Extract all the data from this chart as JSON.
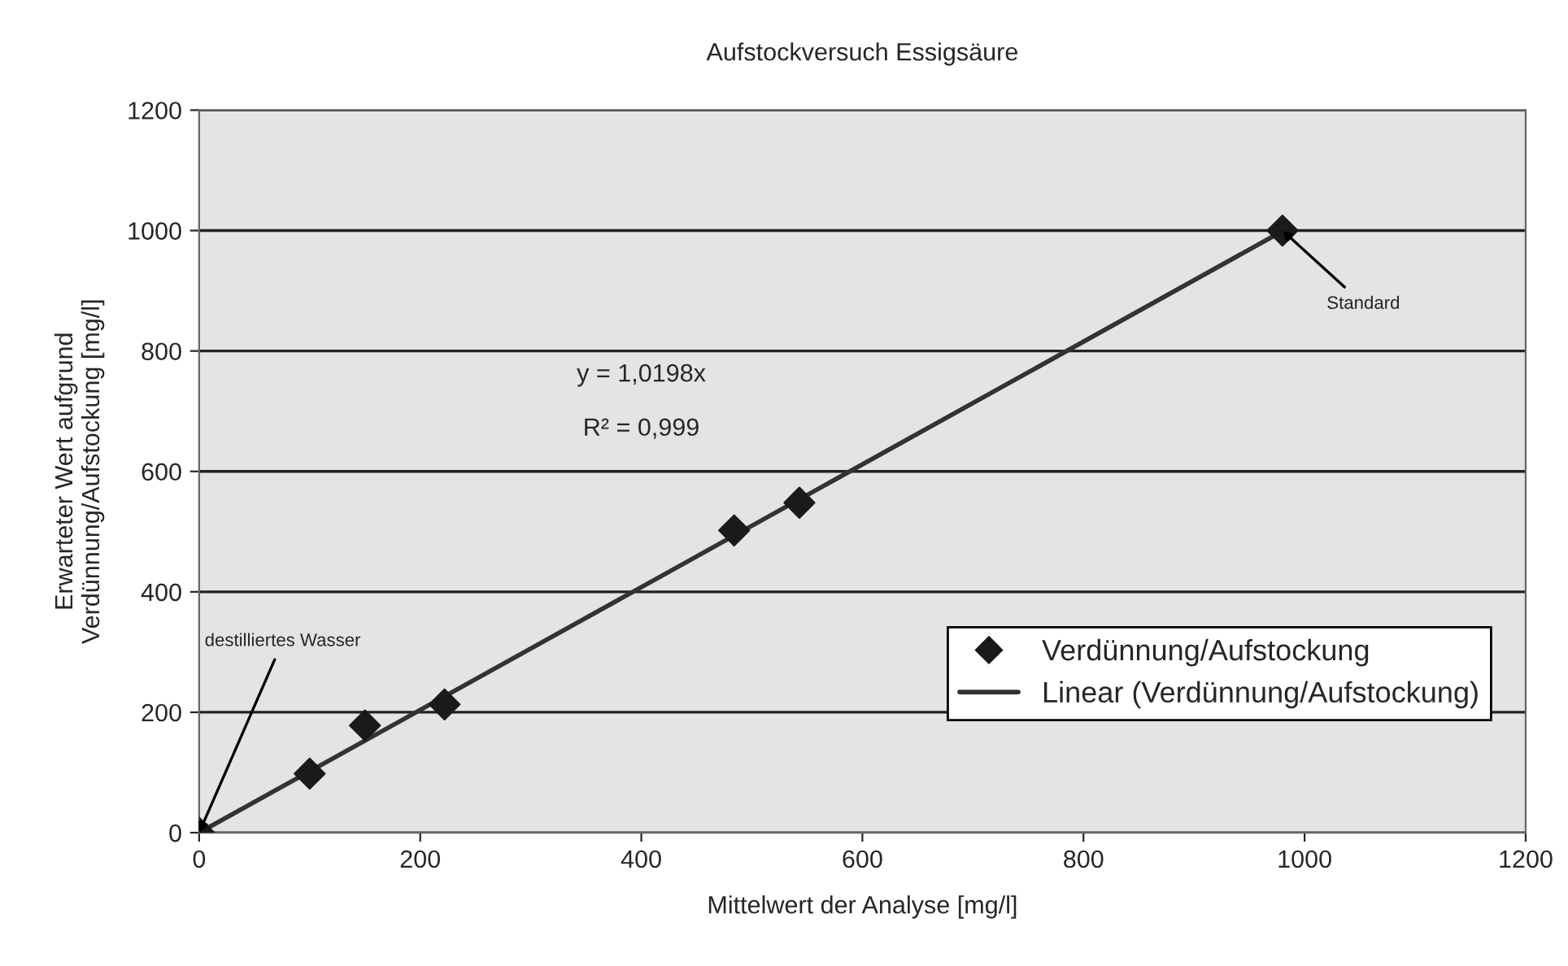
{
  "chart_data": {
    "type": "scatter",
    "title": "Aufstockversuch Essigsäure",
    "xlabel": "Mittelwert der Analyse [mg/l]",
    "ylabel": "Erwarteter Wert aufgrund\nVerdünnung/Aufstockung [mg/l]",
    "series": [
      {
        "name": "Verdünnung/Aufstockung",
        "color": "#1a1a1a",
        "marker": "diamond",
        "x": [
          0,
          100,
          150,
          222,
          484,
          543,
          980
        ],
        "values": [
          0,
          98,
          178,
          213,
          502,
          548,
          1000
        ]
      },
      {
        "name": "Linear (Verdünnung/Aufstockung)",
        "type": "line",
        "color": "#333333",
        "marker": "none",
        "line_style": "solid",
        "x": [
          0,
          980
        ],
        "values": [
          0,
          999
        ]
      }
    ],
    "xlim": [
      0,
      1200
    ],
    "ylim": [
      0,
      1200
    ],
    "xticks": [
      0,
      200,
      400,
      600,
      800,
      1000,
      1200
    ],
    "yticks": [
      0,
      200,
      400,
      600,
      800,
      1000,
      1200
    ],
    "grid": "y",
    "legend": "right",
    "annotations": [
      "y = 1,0198x",
      "R² = 0,999",
      {
        "text": "Standard",
        "x": 980,
        "y": 1000
      },
      {
        "text": "destilliertes Wasser",
        "x": 0,
        "y": 0
      }
    ]
  }
}
